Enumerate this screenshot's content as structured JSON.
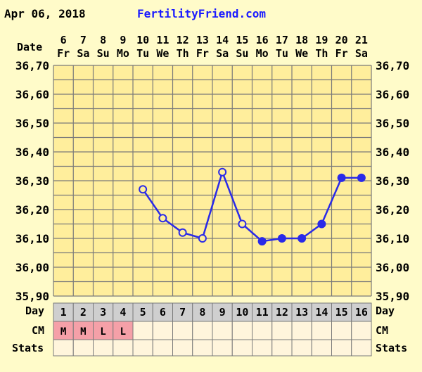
{
  "header": {
    "date": "Apr 06, 2018",
    "site": "FertilityFriend.com"
  },
  "colors": {
    "panel_bg": "#fffbc9",
    "plot_bg": "#ffee9c",
    "grid": "#7a7a7a",
    "row_bg": "#fff5dc",
    "day_row_bg": "#cfcfcf",
    "cm_mark_bg": "#f5a0a8",
    "line": "#2a2ae8"
  },
  "row_labels": {
    "date": "Date",
    "day": "Day",
    "cm": "CM",
    "stats": "Stats"
  },
  "chart_data": {
    "type": "line",
    "ylim": [
      35.9,
      36.7
    ],
    "yticks": [
      "36,70",
      "36,60",
      "36,50",
      "36,40",
      "36,30",
      "36,20",
      "36,10",
      "36,00",
      "35,90"
    ],
    "dates": [
      "6",
      "7",
      "8",
      "9",
      "10",
      "11",
      "12",
      "13",
      "14",
      "15",
      "16",
      "17",
      "18",
      "19",
      "20",
      "21"
    ],
    "weekdays": [
      "Fr",
      "Sa",
      "Su",
      "Mo",
      "Tu",
      "We",
      "Th",
      "Fr",
      "Sa",
      "Su",
      "Mo",
      "Tu",
      "We",
      "Th",
      "Fr",
      "Sa"
    ],
    "cycle_days": [
      "1",
      "2",
      "3",
      "4",
      "5",
      "6",
      "7",
      "8",
      "9",
      "10",
      "11",
      "12",
      "13",
      "14",
      "15",
      "16"
    ],
    "cm": [
      "M",
      "M",
      "L",
      "L",
      "",
      "",
      "",
      "",
      "",
      "",
      "",
      "",
      "",
      "",
      "",
      ""
    ],
    "temps": [
      null,
      null,
      null,
      null,
      36.27,
      36.17,
      36.12,
      36.1,
      36.33,
      36.15,
      36.09,
      36.1,
      36.1,
      36.15,
      36.31,
      36.31
    ],
    "marker_filled": [
      false,
      false,
      false,
      false,
      false,
      false,
      false,
      false,
      false,
      false,
      true,
      true,
      true,
      true,
      true,
      true
    ]
  }
}
